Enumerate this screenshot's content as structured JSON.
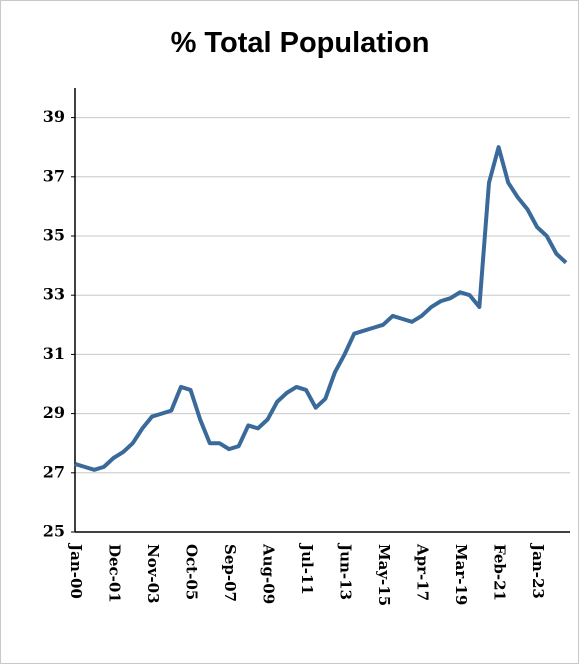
{
  "chart_data": {
    "type": "line",
    "title": "% Total Population",
    "categories": [
      "Jan-00",
      null,
      null,
      null,
      "Dec-01",
      null,
      null,
      null,
      "Nov-03",
      null,
      null,
      null,
      "Oct-05",
      null,
      null,
      null,
      "Sep-07",
      null,
      null,
      null,
      "Aug-09",
      null,
      null,
      null,
      "Jul-11",
      null,
      null,
      null,
      "Jun-13",
      null,
      null,
      null,
      "May-15",
      null,
      null,
      null,
      "Apr-17",
      null,
      null,
      null,
      "Mar-19",
      null,
      null,
      null,
      "Feb-21",
      null,
      null,
      null,
      "Jan-23",
      null,
      null,
      null
    ],
    "series": [
      {
        "color": "#3a6a9a",
        "values": [
          27.3,
          27.2,
          27.1,
          27.2,
          27.5,
          27.7,
          28.0,
          28.5,
          28.9,
          29.0,
          29.1,
          29.9,
          29.8,
          28.8,
          28.0,
          28.0,
          27.8,
          27.9,
          28.6,
          28.5,
          28.8,
          29.4,
          29.7,
          29.9,
          29.8,
          29.2,
          29.5,
          30.4,
          31.0,
          31.7,
          31.8,
          31.9,
          32.0,
          32.3,
          32.2,
          32.1,
          32.3,
          32.6,
          32.8,
          32.9,
          33.1,
          33.0,
          32.6,
          36.8,
          38.0,
          36.8,
          36.3,
          35.9,
          35.3,
          35.0,
          34.4,
          34.1
        ]
      }
    ],
    "ylim": [
      25,
      40
    ],
    "yticks": [
      25,
      27,
      29,
      31,
      33,
      35,
      37,
      39
    ],
    "grid": true
  }
}
